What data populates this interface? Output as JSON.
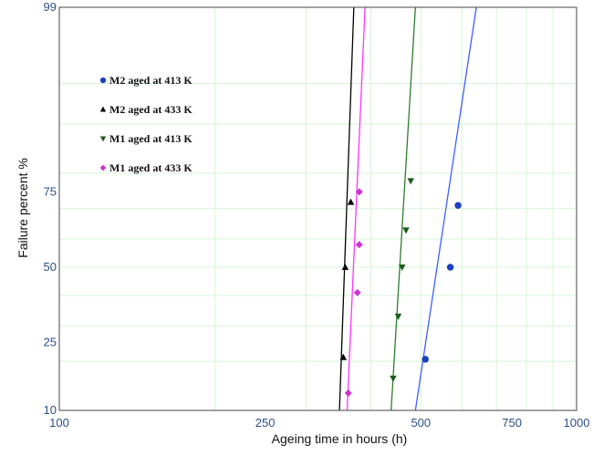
{
  "chart_data": {
    "type": "scatter",
    "title": "",
    "xlabel": "Ageing time in hours (h)",
    "ylabel": "Failure percent %",
    "xlim": [
      100,
      1000
    ],
    "ylim": [
      10,
      99
    ],
    "x_ticks": [
      100,
      250,
      500,
      750,
      1000
    ],
    "y_ticks": [
      10,
      25,
      50,
      75,
      99
    ],
    "x_scale": "log",
    "y_scale": "probability",
    "grid": true,
    "legend_position": "top-left",
    "series": [
      {
        "name": "M2 aged at 413 K",
        "marker": "circle",
        "color": "#1f3fbf",
        "line_color": "#3f5fff",
        "points": [
          [
            510,
            20.5
          ],
          [
            570,
            50
          ],
          [
            590,
            71
          ]
        ],
        "fit_line": [
          [
            488,
            10
          ],
          [
            640,
            99
          ]
        ]
      },
      {
        "name": "M2 aged at 433 K",
        "marker": "triangle-up",
        "color": "#000000",
        "line_color": "#000000",
        "points": [
          [
            354,
            21
          ],
          [
            357,
            50
          ],
          [
            366,
            72
          ]
        ],
        "fit_line": [
          [
            348,
            10
          ],
          [
            371,
            99
          ]
        ]
      },
      {
        "name": "M1 aged at 413 K",
        "marker": "triangle-down",
        "color": "#1a5c1a",
        "line_color": "#2e7d2e",
        "points": [
          [
            442,
            16
          ],
          [
            452,
            33
          ],
          [
            460,
            50
          ],
          [
            468,
            63
          ],
          [
            478,
            78
          ]
        ],
        "fit_line": [
          [
            438,
            10
          ],
          [
            488,
            99
          ]
        ]
      },
      {
        "name": "M1 aged at 433 K",
        "marker": "diamond",
        "color": "#cc33cc",
        "line_color": "#ff33ff",
        "points": [
          [
            362,
            13
          ],
          [
            377,
            41
          ],
          [
            380,
            58
          ],
          [
            380,
            75
          ]
        ],
        "fit_line": [
          [
            360,
            10
          ],
          [
            390,
            99
          ]
        ]
      }
    ]
  }
}
